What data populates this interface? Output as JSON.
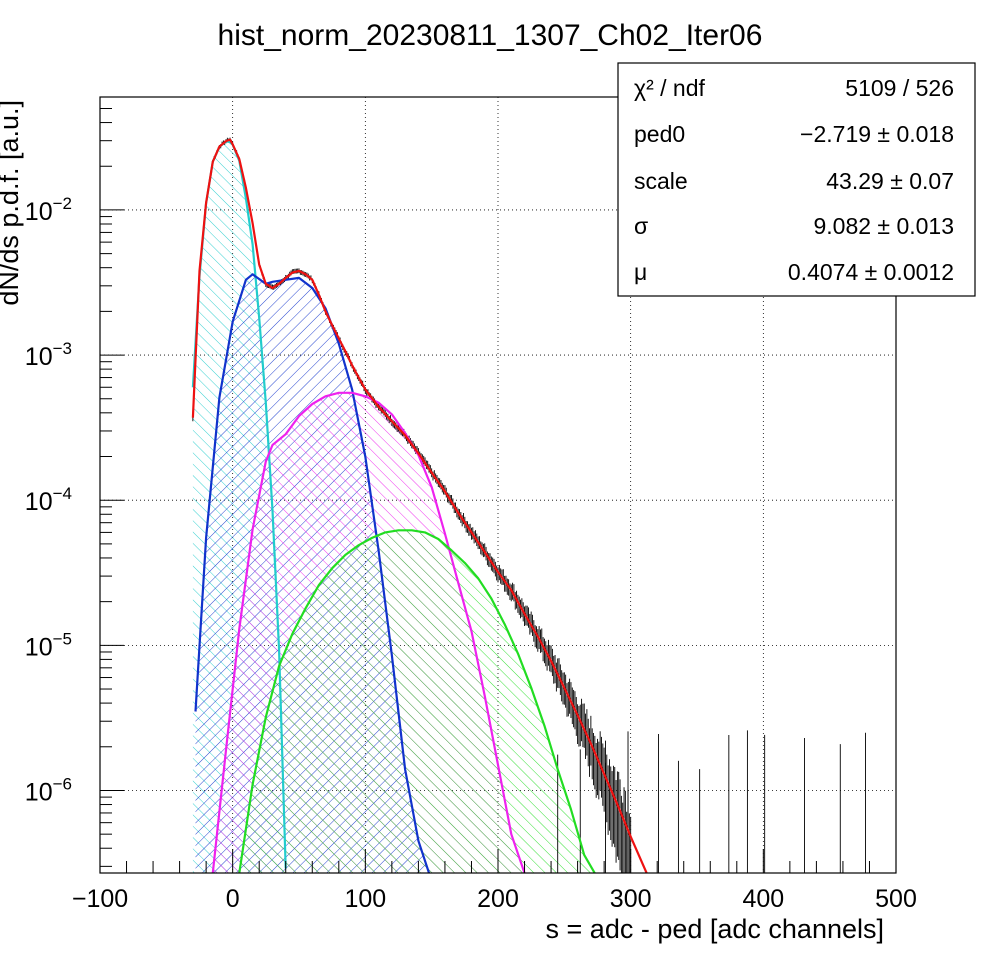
{
  "chart_data": {
    "type": "histogram_with_fit",
    "title": "hist_norm_20230811_1307_Ch02_Iter06",
    "xlabel": "s = adc - ped [adc channels]",
    "ylabel": "dN/ds p.d.f. [a.u.]",
    "xlim": [
      -100,
      500
    ],
    "ylim": [
      2.7e-07,
      0.06
    ],
    "yscale": "log",
    "grid": true,
    "legend_position": "top-right",
    "x_ticks": [
      "−100",
      "0",
      "100",
      "200",
      "300",
      "400",
      "500"
    ],
    "y_ticks": [
      {
        "base": "10",
        "exp": "−6"
      },
      {
        "base": "10",
        "exp": "−5"
      },
      {
        "base": "10",
        "exp": "−4"
      },
      {
        "base": "10",
        "exp": "−3"
      },
      {
        "base": "10",
        "exp": "−2"
      }
    ],
    "stats": [
      {
        "label": "χ² / ndf",
        "value": "5109 / 526"
      },
      {
        "label": "ped0",
        "value": "−2.719 ± 0.018"
      },
      {
        "label": "scale",
        "value": "43.29 ± 0.07"
      },
      {
        "label": "σ",
        "value": "9.082 ± 0.013"
      },
      {
        "label": "μ",
        "value": "0.4074 ± 0.0012"
      }
    ],
    "fit_parameters": {
      "ped0": -2.719,
      "scale": 43.29,
      "sigma": 9.082,
      "mu": 0.4074
    },
    "series": [
      {
        "color": "#22cccc",
        "fill": "hatched",
        "x": [
          -30,
          -25,
          -20,
          -15,
          -10,
          -5,
          -2.7,
          0,
          5,
          10,
          15,
          20,
          25,
          30,
          35,
          40
        ],
        "y": [
          0.0006,
          0.0035,
          0.0111,
          0.0215,
          0.0272,
          0.0296,
          0.0295,
          0.0282,
          0.0218,
          0.012,
          0.0058,
          0.0018,
          0.00047,
          8.5e-05,
          9.2e-06,
          2.9e-07
        ]
      },
      {
        "color": "#1133cc",
        "fill": "hatched",
        "x": [
          -28,
          -20,
          -10,
          0,
          10,
          15,
          25,
          30,
          40,
          50,
          60,
          70,
          80,
          90,
          100,
          110,
          120,
          130,
          140,
          148
        ],
        "y": [
          3.5e-06,
          5.5e-05,
          0.00051,
          0.0017,
          0.0033,
          0.0036,
          0.0031,
          0.0032,
          0.0033,
          0.0034,
          0.0029,
          0.0021,
          0.0012,
          0.00058,
          0.0002,
          4.5e-05,
          8.5e-06,
          1.4e-06,
          4.5e-07,
          2.7e-07
        ]
      },
      {
        "color": "#ee22ee",
        "fill": "hatched",
        "x": [
          -15,
          -5,
          5,
          15,
          25,
          30,
          40,
          50,
          60,
          70,
          80,
          90,
          100,
          110,
          120,
          130,
          140,
          150,
          160,
          170,
          180,
          190,
          200,
          210,
          220
        ],
        "y": [
          2.7e-07,
          1.9e-06,
          1.3e-05,
          6.3e-05,
          0.000185,
          0.00024,
          0.000285,
          0.00038,
          0.00046,
          0.00052,
          0.00055,
          0.00055,
          0.00052,
          0.00047,
          0.00039,
          0.00029,
          0.000205,
          0.000123,
          5.9e-05,
          2.7e-05,
          1.25e-05,
          4.5e-06,
          1.5e-06,
          5e-07,
          2.7e-07
        ]
      },
      {
        "color": "#22dd22",
        "fill": "hatched",
        "x": [
          5,
          15,
          25,
          35,
          45,
          55,
          65,
          75,
          85,
          95,
          105,
          115,
          125,
          135,
          145,
          155,
          165,
          175,
          185,
          195,
          205,
          215,
          225,
          235,
          245,
          255,
          265,
          275
        ],
        "y": [
          2.7e-07,
          1.1e-06,
          3.2e-06,
          7.2e-06,
          1.2e-05,
          1.8e-05,
          2.6e-05,
          3.4e-05,
          4.2e-05,
          4.9e-05,
          5.5e-05,
          6e-05,
          6.2e-05,
          6.2e-05,
          6e-05,
          5.4e-05,
          4.5e-05,
          3.7e-05,
          2.9e-05,
          2.1e-05,
          1.4e-05,
          8.8e-06,
          5.1e-06,
          2.8e-06,
          1.4e-06,
          7.4e-07,
          3.6e-07,
          2.5e-07
        ]
      },
      {
        "color": "#ee1111",
        "fill": "none",
        "x": [
          -30,
          -25,
          -20,
          -15,
          -10,
          -5,
          -2,
          0,
          5,
          10,
          15,
          20,
          25,
          30,
          35,
          40,
          45,
          50,
          55,
          60,
          65,
          70,
          75,
          80,
          85,
          90,
          95,
          100,
          110,
          120,
          130,
          140,
          150,
          160,
          170,
          180,
          190,
          200,
          210,
          220,
          230,
          240,
          250,
          260,
          270,
          280,
          290,
          300,
          312
        ],
        "y": [
          0.00037,
          0.0038,
          0.0112,
          0.0215,
          0.0273,
          0.0298,
          0.0305,
          0.0283,
          0.0224,
          0.0142,
          0.0081,
          0.0042,
          0.0031,
          0.0029,
          0.0031,
          0.0034,
          0.0037,
          0.0038,
          0.0036,
          0.0033,
          0.0026,
          0.002,
          0.0016,
          0.0013,
          0.00106,
          0.00085,
          0.0007,
          0.00058,
          0.00044,
          0.00035,
          0.00028,
          0.00021,
          0.000155,
          0.000115,
          8.2e-05,
          6e-05,
          4.4e-05,
          3.2e-05,
          2.4e-05,
          1.65e-05,
          1.15e-05,
          7.8e-06,
          5.1e-06,
          3.3e-06,
          2.1e-06,
          1.3e-06,
          8e-07,
          4.8e-07,
          2.7e-07
        ]
      }
    ]
  }
}
